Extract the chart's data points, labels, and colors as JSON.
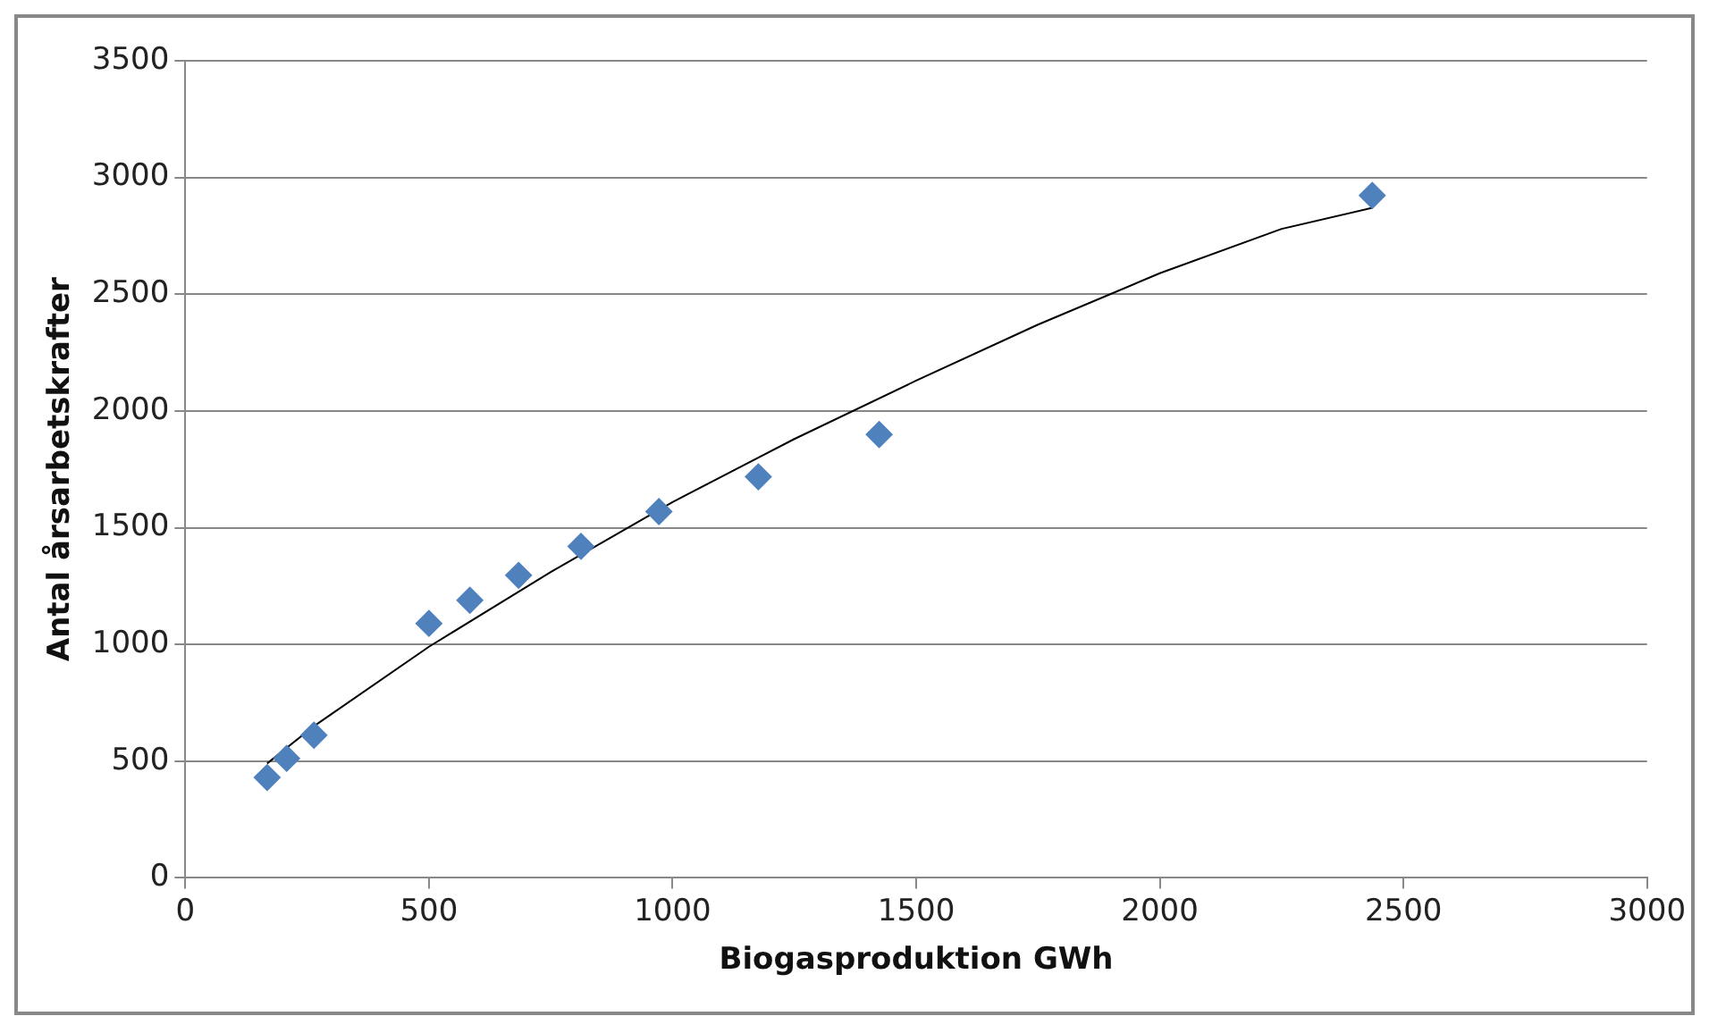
{
  "chart_data": {
    "type": "scatter",
    "xlabel": "Biogasproduktion GWh",
    "ylabel": "Antal årsarbetskrafter",
    "xlim": [
      0,
      3000
    ],
    "xticks": [
      0,
      500,
      1000,
      1500,
      2000,
      2500,
      3000
    ],
    "ylim": [
      0,
      3500
    ],
    "yticks": [
      0,
      500,
      1000,
      1500,
      2000,
      2500,
      3000,
      3500
    ],
    "grid": "y",
    "marker": "diamond",
    "series": [
      {
        "color": "#4f81bd",
        "x": [
          168,
          208,
          264,
          500,
          584,
          684,
          812,
          972,
          1176,
          1424,
          2436
        ],
        "values": [
          430,
          512,
          611,
          1090,
          1189,
          1296,
          1420,
          1569,
          1718,
          1899,
          2923
        ]
      },
      {
        "type": "line",
        "color": "#000000",
        "marker": "none",
        "line_style": "solid",
        "x": [
          168,
          264,
          500,
          750,
          1000,
          1250,
          1500,
          1750,
          2000,
          2250,
          2436
        ],
        "values": [
          490,
          650,
          990,
          1310,
          1610,
          1880,
          2130,
          2370,
          2590,
          2780,
          2870
        ]
      }
    ]
  }
}
